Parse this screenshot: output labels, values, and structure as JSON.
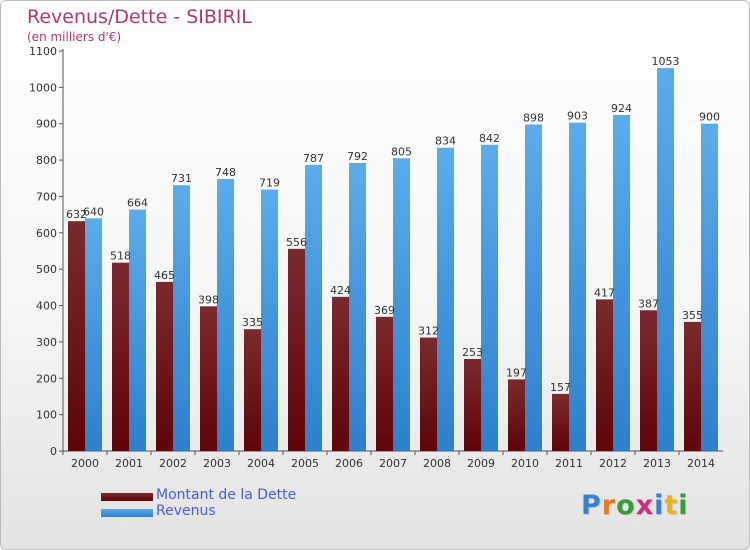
{
  "title": "Revenus/Dette - SIBIRIL",
  "subtitle": "(en milliers d'€)",
  "colors": {
    "dette_dark": "#5e0508",
    "dette_light": "#7a2a2e",
    "revenus_dark": "#2e80cc",
    "revenus_light": "#5aaceb",
    "axis_text": "#333333",
    "title": "#b03a6a"
  },
  "legend": {
    "dette_label": "Montant de la Dette",
    "revenus_label": "Revenus"
  },
  "logo": {
    "letters": [
      "P",
      "r",
      "o",
      "x",
      "i",
      "t",
      "i"
    ],
    "colors": [
      "#3a7fd0",
      "#e87a1c",
      "#3a9a3a",
      "#d12b7a",
      "#3a7fd0",
      "#e8b31c",
      "#3a9a3a"
    ]
  },
  "chart_data": {
    "type": "bar",
    "title": "Revenus/Dette - SIBIRIL",
    "subtitle": "(en milliers d'€)",
    "categories": [
      "2000",
      "2001",
      "2002",
      "2003",
      "2004",
      "2005",
      "2006",
      "2007",
      "2008",
      "2009",
      "2010",
      "2011",
      "2012",
      "2013",
      "2014"
    ],
    "series": [
      {
        "name": "Montant de la Dette",
        "values": [
          632,
          518,
          465,
          398,
          335,
          556,
          424,
          369,
          312,
          253,
          197,
          157,
          417,
          387,
          355
        ]
      },
      {
        "name": "Revenus",
        "values": [
          640,
          664,
          731,
          748,
          719,
          787,
          792,
          805,
          834,
          842,
          898,
          903,
          924,
          1053,
          900
        ]
      }
    ],
    "ylim": [
      0,
      1100
    ],
    "yticks": [
      0,
      100,
      200,
      300,
      400,
      500,
      600,
      700,
      800,
      900,
      1000,
      1100
    ],
    "grid": false,
    "legend_position": "bottom-left"
  }
}
